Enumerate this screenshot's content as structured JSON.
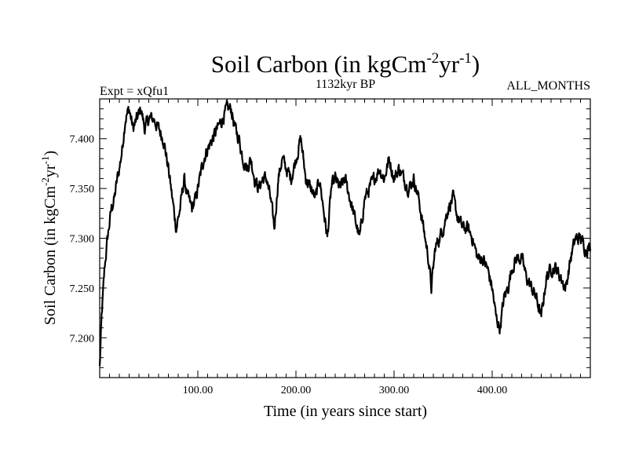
{
  "chart_data": {
    "type": "line",
    "title": {
      "main": "Soil Carbon (in kgCm",
      "sup1": "-2",
      "mid": "yr",
      "sup2": "-1",
      "end": ")"
    },
    "subtitle_left": "Expt = xQfu1",
    "subtitle_center": "1132kyr BP",
    "subtitle_right": "ALL_MONTHS",
    "xlabel": "Time (in years since start)",
    "ylabel": {
      "main": "Soil Carbon (in kgCm",
      "sup1": "-2",
      "mid": "yr",
      "sup2": "-1",
      "end": ")"
    },
    "xlim": [
      0,
      500
    ],
    "ylim": [
      7.16,
      7.44
    ],
    "x_ticks": [
      {
        "value": 100,
        "label": "100.00"
      },
      {
        "value": 200,
        "label": "200.00"
      },
      {
        "value": 300,
        "label": "300.00"
      },
      {
        "value": 400,
        "label": "400.00"
      }
    ],
    "y_ticks": [
      {
        "value": 7.2,
        "label": "7.200"
      },
      {
        "value": 7.25,
        "label": "7.250"
      },
      {
        "value": 7.3,
        "label": "7.300"
      },
      {
        "value": 7.35,
        "label": "7.350"
      },
      {
        "value": 7.4,
        "label": "7.400"
      }
    ],
    "series": [
      {
        "color": "#000000",
        "points": [
          [
            0,
            7.17
          ],
          [
            2,
            7.22
          ],
          [
            5,
            7.27
          ],
          [
            8,
            7.3
          ],
          [
            12,
            7.33
          ],
          [
            15,
            7.34
          ],
          [
            18,
            7.36
          ],
          [
            20,
            7.37
          ],
          [
            23,
            7.39
          ],
          [
            26,
            7.42
          ],
          [
            30,
            7.43
          ],
          [
            34,
            7.41
          ],
          [
            38,
            7.42
          ],
          [
            42,
            7.43
          ],
          [
            46,
            7.41
          ],
          [
            50,
            7.42
          ],
          [
            55,
            7.42
          ],
          [
            60,
            7.41
          ],
          [
            65,
            7.4
          ],
          [
            70,
            7.37
          ],
          [
            74,
            7.34
          ],
          [
            78,
            7.31
          ],
          [
            82,
            7.33
          ],
          [
            86,
            7.36
          ],
          [
            90,
            7.34
          ],
          [
            94,
            7.33
          ],
          [
            98,
            7.34
          ],
          [
            102,
            7.36
          ],
          [
            106,
            7.38
          ],
          [
            110,
            7.39
          ],
          [
            115,
            7.4
          ],
          [
            120,
            7.41
          ],
          [
            125,
            7.42
          ],
          [
            130,
            7.43
          ],
          [
            134,
            7.43
          ],
          [
            138,
            7.41
          ],
          [
            142,
            7.4
          ],
          [
            146,
            7.38
          ],
          [
            150,
            7.37
          ],
          [
            154,
            7.38
          ],
          [
            158,
            7.36
          ],
          [
            162,
            7.35
          ],
          [
            166,
            7.36
          ],
          [
            170,
            7.36
          ],
          [
            174,
            7.34
          ],
          [
            178,
            7.31
          ],
          [
            182,
            7.36
          ],
          [
            186,
            7.38
          ],
          [
            190,
            7.37
          ],
          [
            195,
            7.36
          ],
          [
            200,
            7.38
          ],
          [
            205,
            7.4
          ],
          [
            210,
            7.36
          ],
          [
            215,
            7.35
          ],
          [
            220,
            7.34
          ],
          [
            224,
            7.36
          ],
          [
            228,
            7.33
          ],
          [
            232,
            7.3
          ],
          [
            236,
            7.35
          ],
          [
            240,
            7.36
          ],
          [
            245,
            7.35
          ],
          [
            250,
            7.36
          ],
          [
            255,
            7.34
          ],
          [
            260,
            7.32
          ],
          [
            265,
            7.3
          ],
          [
            270,
            7.34
          ],
          [
            275,
            7.35
          ],
          [
            280,
            7.36
          ],
          [
            285,
            7.37
          ],
          [
            290,
            7.36
          ],
          [
            295,
            7.38
          ],
          [
            300,
            7.36
          ],
          [
            305,
            7.37
          ],
          [
            310,
            7.36
          ],
          [
            315,
            7.35
          ],
          [
            320,
            7.36
          ],
          [
            325,
            7.34
          ],
          [
            330,
            7.31
          ],
          [
            335,
            7.28
          ],
          [
            338,
            7.25
          ],
          [
            342,
            7.29
          ],
          [
            346,
            7.3
          ],
          [
            350,
            7.31
          ],
          [
            355,
            7.33
          ],
          [
            360,
            7.34
          ],
          [
            365,
            7.32
          ],
          [
            370,
            7.31
          ],
          [
            375,
            7.31
          ],
          [
            380,
            7.3
          ],
          [
            385,
            7.28
          ],
          [
            390,
            7.28
          ],
          [
            395,
            7.27
          ],
          [
            400,
            7.25
          ],
          [
            404,
            7.22
          ],
          [
            408,
            7.21
          ],
          [
            412,
            7.24
          ],
          [
            416,
            7.25
          ],
          [
            420,
            7.27
          ],
          [
            425,
            7.28
          ],
          [
            430,
            7.28
          ],
          [
            435,
            7.26
          ],
          [
            440,
            7.25
          ],
          [
            445,
            7.24
          ],
          [
            450,
            7.22
          ],
          [
            455,
            7.26
          ],
          [
            460,
            7.27
          ],
          [
            465,
            7.27
          ],
          [
            470,
            7.26
          ],
          [
            475,
            7.25
          ],
          [
            480,
            7.28
          ],
          [
            485,
            7.3
          ],
          [
            490,
            7.3
          ],
          [
            495,
            7.29
          ],
          [
            500,
            7.29
          ]
        ]
      }
    ]
  }
}
